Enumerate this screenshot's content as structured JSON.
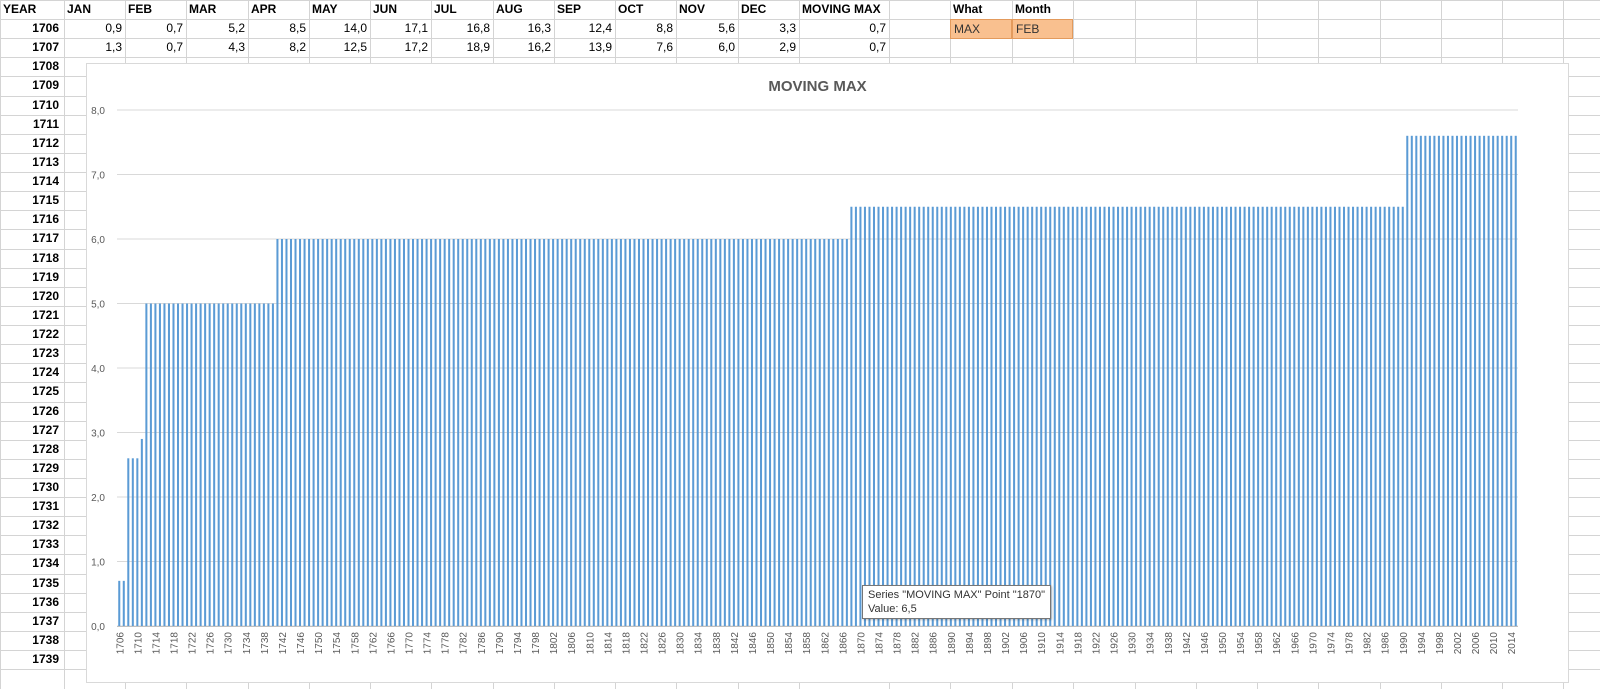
{
  "sheet": {
    "headers": [
      "YEAR",
      "JAN",
      "FEB",
      "MAR",
      "APR",
      "MAY",
      "JUN",
      "JUL",
      "AUG",
      "SEP",
      "OCT",
      "NOV",
      "DEC",
      "MOVING MAX"
    ],
    "rows": [
      {
        "year": "1706",
        "values": [
          "0,9",
          "0,7",
          "5,2",
          "8,5",
          "14,0",
          "17,1",
          "16,8",
          "16,3",
          "12,4",
          "8,8",
          "5,6",
          "3,3",
          "0,7"
        ]
      },
      {
        "year": "1707",
        "values": [
          "1,3",
          "0,7",
          "4,3",
          "8,2",
          "12,5",
          "17,2",
          "18,9",
          "16,2",
          "13,9",
          "7,6",
          "6,0",
          "2,9",
          "0,7"
        ]
      }
    ],
    "row_years": [
      "1708",
      "1709",
      "1710",
      "1711",
      "1712",
      "1713",
      "1714",
      "1715",
      "1716",
      "1717",
      "1718",
      "1719",
      "1720",
      "1721",
      "1722",
      "1723",
      "1724",
      "1725",
      "1726",
      "1727",
      "1728",
      "1729",
      "1730",
      "1731",
      "1732",
      "1733",
      "1734",
      "1735",
      "1736",
      "1737",
      "1738",
      "1739"
    ],
    "what_header": "What",
    "month_header": "Month",
    "what_value": "MAX",
    "month_value": "FEB",
    "highlight_color": "#f9c08f"
  },
  "tooltip": {
    "line1": "Series \"MOVING MAX\" Point \"1870\"",
    "line2": "Value: 6,5"
  },
  "chart_data": {
    "type": "bar",
    "title": "MOVING MAX",
    "bar_color": "#5b9bd5",
    "ylim": [
      0,
      8
    ],
    "y_ticks": [
      "0,0",
      "1,0",
      "2,0",
      "3,0",
      "4,0",
      "5,0",
      "6,0",
      "7,0",
      "8,0"
    ],
    "x_range": [
      1706,
      2015
    ],
    "x_tick_step": 4,
    "grid": true,
    "segments": [
      {
        "from": 1706,
        "to": 1707,
        "value": 0.7
      },
      {
        "from": 1708,
        "to": 1710,
        "value": 2.6
      },
      {
        "from": 1711,
        "to": 1711,
        "value": 2.9
      },
      {
        "from": 1712,
        "to": 1740,
        "value": 5.0
      },
      {
        "from": 1741,
        "to": 1867,
        "value": 6.0
      },
      {
        "from": 1868,
        "to": 1990,
        "value": 6.5
      },
      {
        "from": 1991,
        "to": 2015,
        "value": 7.6
      }
    ]
  }
}
